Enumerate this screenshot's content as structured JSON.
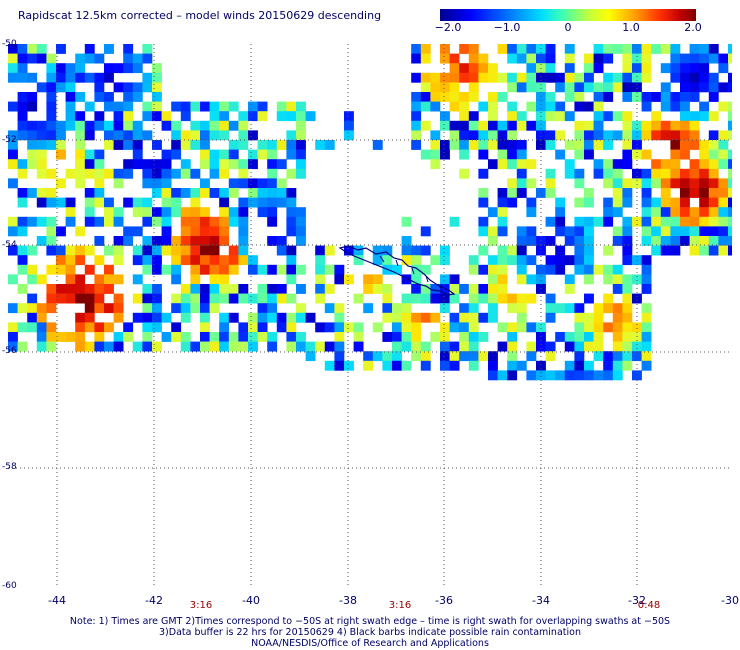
{
  "title": "Rapidscat 12.5km corrected – model winds 20150629 descending",
  "colorbar": {
    "ticks": [
      "−2.0",
      "−1.0",
      "0",
      "1.0",
      "2.0"
    ],
    "range": [
      -2.0,
      2.0
    ]
  },
  "map": {
    "lon_range": [
      -45,
      -30
    ],
    "lat_range": [
      -60,
      -50
    ],
    "lat_ticks": [
      "-50",
      "-52",
      "-54",
      "-56",
      "-58",
      "-60"
    ],
    "lon_ticks": [
      "-44",
      "-42",
      "-40",
      "-38",
      "-36",
      "-34",
      "-32",
      "-30"
    ],
    "times": [
      {
        "label": "3:16",
        "lon": -41.0
      },
      {
        "label": "3:16",
        "lon": -37.0
      },
      {
        "label": "0:48",
        "lon": -31.8
      }
    ],
    "grid": "dotted"
  },
  "notes": [
    "Note: 1) Times are GMT 2)Times correspond to −50S at right swath edge – time is right swath for overlapping swaths at −50S",
    "3)Data buffer is 22 hrs for 20150629 4) Black barbs indicate possible rain contamination",
    "NOAA/NESDIS/Office of Research and Applications"
  ],
  "colors": {
    "text": "#000066",
    "time": "#990000",
    "coast": "#000080"
  }
}
